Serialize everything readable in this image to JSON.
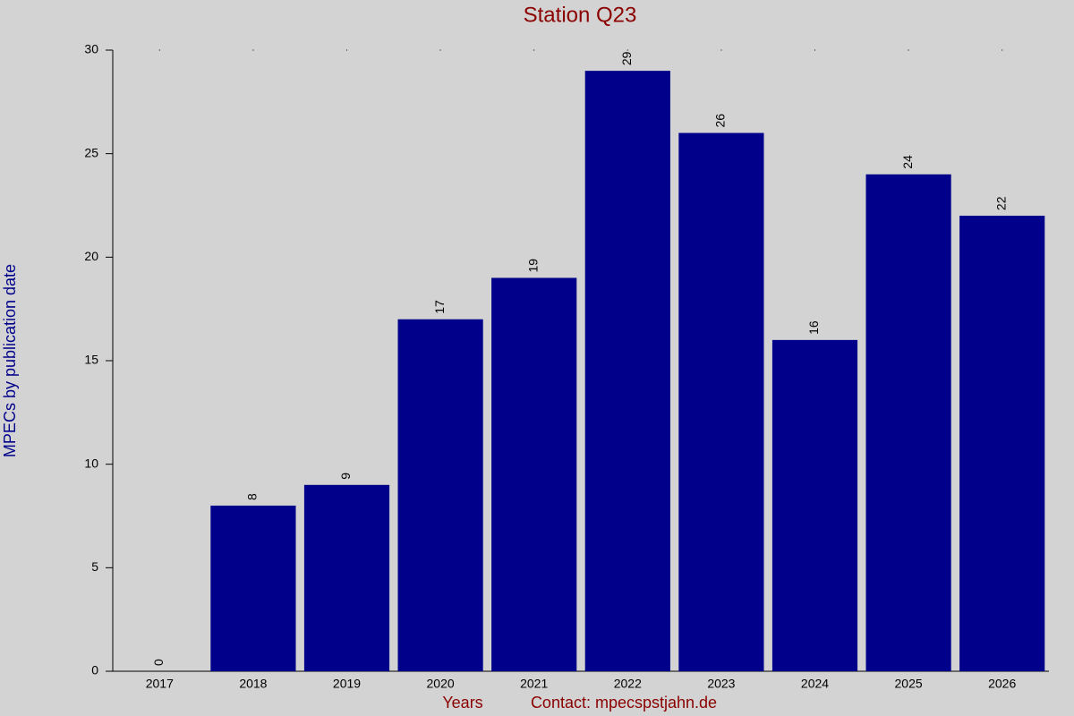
{
  "chart_data": {
    "type": "bar",
    "title": "Station Q23",
    "x_label": "Years",
    "y_label": "MPECs by publication date",
    "annotation": "Contact: mpecspstjahn.de",
    "categories": [
      "2017",
      "2018",
      "2019",
      "2020",
      "2021",
      "2022",
      "2023",
      "2024",
      "2025",
      "2026"
    ],
    "values": [
      0,
      8,
      9,
      17,
      19,
      29,
      26,
      16,
      24,
      22
    ],
    "color": "#00008b",
    "ylim": [
      0,
      30
    ],
    "yticks": [
      0,
      5,
      10,
      15,
      20,
      25,
      30
    ],
    "grid": false
  }
}
